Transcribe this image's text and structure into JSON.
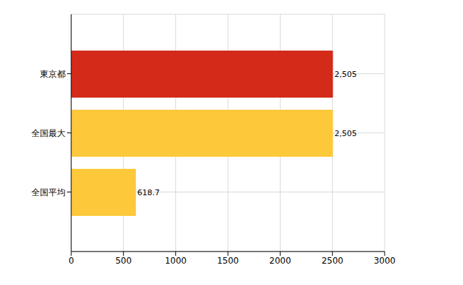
{
  "chart_data": {
    "type": "bar",
    "orientation": "horizontal",
    "categories": [
      "東京都",
      "全国最大",
      "全国平均"
    ],
    "values": [
      2505,
      2505,
      618.7
    ],
    "value_labels": [
      "2,505",
      "2,505",
      "618.7"
    ],
    "colors": [
      "#d42a1a",
      "#fdc83a",
      "#fdc83a"
    ],
    "xlim": [
      0,
      3000
    ],
    "xticks": [
      0,
      500,
      1000,
      1500,
      2000,
      2500,
      3000
    ],
    "grid": true,
    "data_labels": true
  }
}
